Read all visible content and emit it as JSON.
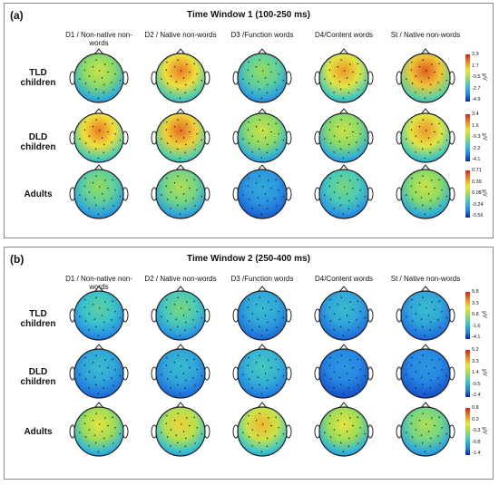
{
  "panels": [
    {
      "id": "a",
      "label": "(a)",
      "title": "Time Window 1 (100-250 ms)",
      "columns": [
        "D1 / Non-native non-words",
        "D2 / Native non-words",
        "D3 /Function words",
        "D4/Content words",
        "St / Native non-words"
      ],
      "rows": [
        {
          "label": "TLD children",
          "scale": [
            "3.9",
            "1.7",
            "-0.5",
            "-2.7",
            "-4.9"
          ],
          "unit": "μV",
          "levels": [
            0.6,
            0.85,
            0.5,
            0.8,
            0.9
          ]
        },
        {
          "label": "DLD children",
          "scale": [
            "3.4",
            "1.6",
            "-0.3",
            "-2.2",
            "-4.1"
          ],
          "unit": "μV",
          "levels": [
            0.85,
            0.88,
            0.6,
            0.6,
            0.8
          ]
        },
        {
          "label": "Adults",
          "scale": [
            "0.71",
            "0.39",
            "0.08",
            "-0.24",
            "-0.56"
          ],
          "unit": "μV",
          "levels": [
            0.5,
            0.55,
            0.25,
            0.45,
            0.6
          ]
        }
      ]
    },
    {
      "id": "b",
      "label": "(b)",
      "title": "Time Window 2 (250-400 ms)",
      "columns": [
        "D1 / Non-native non-words",
        "D2 / Native non-words",
        "D3 /Function words",
        "D4/Content words",
        "St / Native non-words"
      ],
      "rows": [
        {
          "label": "TLD children",
          "scale": [
            "5.8",
            "3.3",
            "0.8",
            "-1.6",
            "-4.1"
          ],
          "unit": "μV",
          "levels": [
            0.4,
            0.45,
            0.3,
            0.3,
            0.3
          ]
        },
        {
          "label": "DLD children",
          "scale": [
            "5.2",
            "3.3",
            "1.4",
            "-0.5",
            "-2.4"
          ],
          "unit": "μV",
          "levels": [
            0.3,
            0.3,
            0.35,
            0.2,
            0.2
          ]
        },
        {
          "label": "Adults",
          "scale": [
            "0.8",
            "0.3",
            "-0.3",
            "-0.8",
            "-1.4"
          ],
          "unit": "μV",
          "levels": [
            0.65,
            0.7,
            0.75,
            0.65,
            0.55
          ]
        }
      ]
    }
  ]
}
